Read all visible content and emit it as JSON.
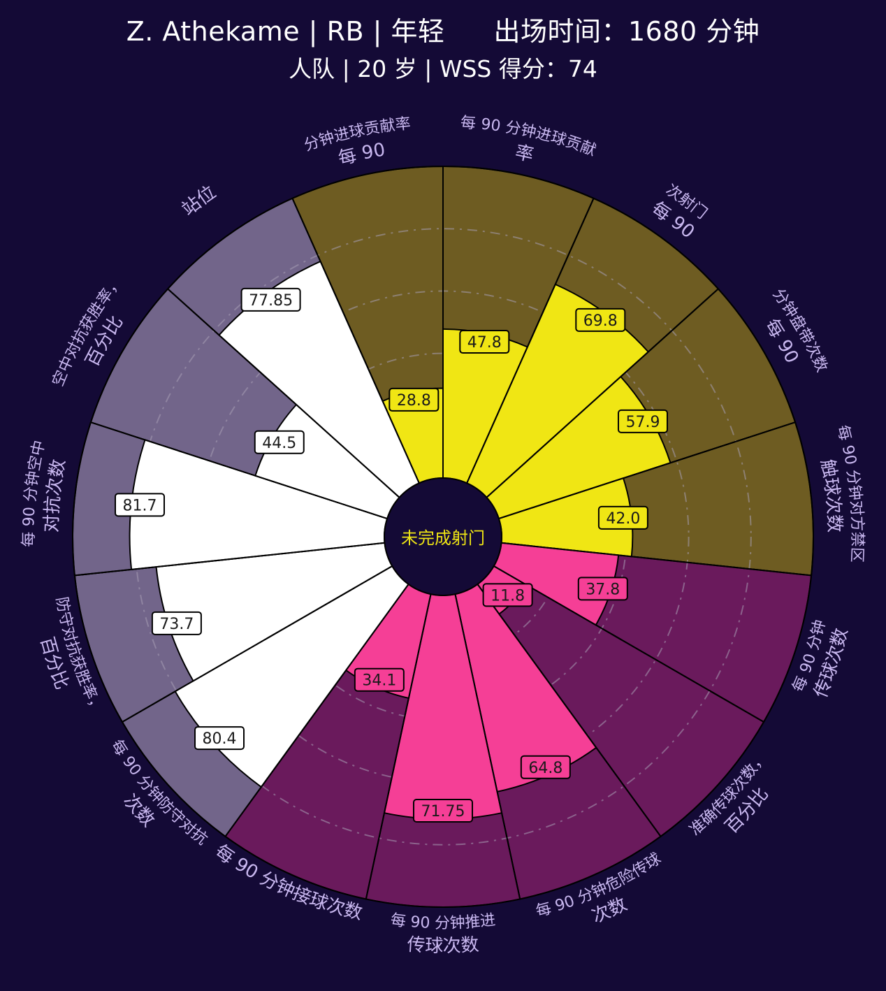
{
  "header": {
    "title_left": "Z. Athekame | RB | 年轻",
    "title_right": "出场时间：1680 分钟",
    "subtitle": "人队 | 20 岁 | WSS 得分：74"
  },
  "chart_data": {
    "type": "radial-bar",
    "center_label": "未完成射门",
    "max": 100,
    "colors": {
      "background": "#140a36",
      "attack_bar": "#f0e614",
      "attack_sector": "#6e5c22",
      "possession_bar": "#f53f96",
      "possession_sector": "#6a1a5c",
      "defense_bar": "#ffffff",
      "defense_sector": "#72658a",
      "label_text": "#c9b8f0"
    },
    "categories": [
      {
        "value": 28.8,
        "group": "attack",
        "value_label": "28.8",
        "label_lines": [
          "分钟进球贡献率",
          "每 90"
        ]
      },
      {
        "value": 47.8,
        "group": "attack",
        "value_label": "47.8",
        "label_lines": [
          "每 90 分钟进球贡献",
          "率"
        ]
      },
      {
        "value": 69.8,
        "group": "attack",
        "value_label": "69.8",
        "label_lines": [
          "次射门",
          "每 90"
        ]
      },
      {
        "value": 57.9,
        "group": "attack",
        "value_label": "57.9",
        "label_lines": [
          "分钟盘带次数",
          "每 90"
        ]
      },
      {
        "value": 42.0,
        "group": "attack",
        "value_label": "42.0",
        "label_lines": [
          "每 90 分钟对方禁区",
          "触球次数"
        ]
      },
      {
        "value": 37.8,
        "group": "possession",
        "value_label": "37.8",
        "label_lines": [
          "每 90 分钟",
          "传球次数"
        ]
      },
      {
        "value": 11.8,
        "group": "possession",
        "value_label": "11.8",
        "label_lines": [
          "准确传球次数，",
          "百分比"
        ]
      },
      {
        "value": 64.8,
        "group": "possession",
        "value_label": "64.8",
        "label_lines": [
          "每 90 分钟危险传球",
          "次数"
        ]
      },
      {
        "value": 71.75,
        "group": "possession",
        "value_label": "71.75",
        "label_lines": [
          "每 90 分钟推进",
          "传球次数"
        ]
      },
      {
        "value": 34.1,
        "group": "possession",
        "value_label": "34.1",
        "label_lines": [
          "每 90 分钟接球次数"
        ]
      },
      {
        "value": 80.4,
        "group": "defense",
        "value_label": "80.4",
        "label_lines": [
          "每 90 分钟防守对抗",
          "次数"
        ]
      },
      {
        "value": 73.7,
        "group": "defense",
        "value_label": "73.7",
        "label_lines": [
          "防守对抗获胜率，",
          "百分比"
        ]
      },
      {
        "value": 81.7,
        "group": "defense",
        "value_label": "81.7",
        "label_lines": [
          "每 90 分钟空中",
          "对抗次数"
        ]
      },
      {
        "value": 44.5,
        "group": "defense",
        "value_label": "44.5",
        "label_lines": [
          "空中对抗获胜率，",
          "百分比"
        ]
      },
      {
        "value": 77.85,
        "group": "defense",
        "value_label": "77.85",
        "label_lines": [
          "站位"
        ]
      }
    ]
  }
}
